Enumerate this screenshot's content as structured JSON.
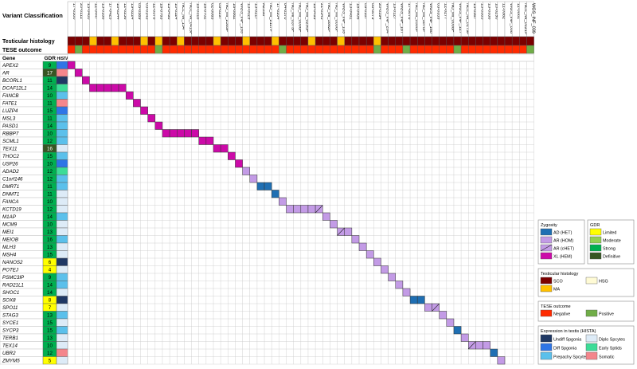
{
  "headers": {
    "variant_classification": "Variant Classification",
    "testicular_histology": "Testicular histology",
    "tese_outcome": "TESE outcome",
    "gene": "Gene",
    "gdr": "GDR",
    "hista": "HISTA"
  },
  "patients": [
    "17-0300",
    "20-0112",
    "13-0400",
    "12-0447",
    "13-0188",
    "17-0425",
    "18-0344",
    "12-0236",
    "19-0224",
    "05-0389",
    "05-0143",
    "12-0378",
    "18-0763",
    "13-0498",
    "10-0324",
    "NCL_MI_154",
    "NCL_MI_0419P",
    "18-0318",
    "16-0702",
    "02-0065",
    "09-0297",
    "NU_MI_2389P",
    "16-0862",
    "WGS_INF_199",
    "13-0029",
    "13-0217",
    "A2396",
    "NU_MI_2117P",
    "17-0104",
    "04-0370",
    "NU_MI_0379P",
    "NU_MI_0006P",
    "NU_MI_0295P",
    "18-0499",
    "21-0345",
    "NU_MI_1662P",
    "NU_MI_0006P",
    "WGS_INF_139",
    "13-0481",
    "18-0406",
    "09-0187",
    "08-0079",
    "20-0394",
    "WGS_INF_284",
    "13-0127",
    "WGS_INF_187",
    "17-0076",
    "NU_MI_0500P",
    "NU_MI_1870P",
    "WGS_INF_160",
    "03-0359",
    "12-0277",
    "NU_MI_0008P",
    "WGS_INF_127",
    "NCL_MI_0179P",
    "15-0567",
    "13-0385",
    "13-0338",
    "10-0290",
    "11-0382",
    "WGS_INF_008",
    "11-0061",
    "NCL_MI_0121P",
    "WGS_INF_039"
  ],
  "histology_codes": [
    "SCO",
    "SCO",
    "SCO",
    "MA",
    "SCO",
    "SCO",
    "MA",
    "SCO",
    "SCO",
    "SCO",
    "MA",
    "SCO",
    "MA",
    "SCO",
    "SCO",
    "MA",
    "SCO",
    "SCO",
    "SCO",
    "SCO",
    "MA",
    "SCO",
    "SCO",
    "SCO",
    "MA",
    "SCO",
    "SCO",
    "SCO",
    "MA",
    "SCO",
    "SCO",
    "SCO",
    "SCO",
    "MA",
    "SCO",
    "SCO",
    "SCO",
    "MA",
    "SCO",
    "SCO",
    "SCO",
    "SCO",
    "MA",
    "SCO",
    "SCO",
    "SCO",
    "SCO",
    "SCO",
    "SCO",
    "SCO",
    "SCO",
    "SCO",
    "SCO",
    "SCO",
    "SCO",
    "SCO",
    "SCO",
    "SCO",
    "SCO",
    "SCO",
    "SCO",
    "SCO",
    "SCO",
    "SCO"
  ],
  "tese_codes": [
    "Negative",
    "Positive",
    "Negative",
    "Negative",
    "Negative",
    "Negative",
    "Negative",
    "Negative",
    "Negative",
    "Negative",
    "Negative",
    "Negative",
    "Positive",
    "Negative",
    "Negative",
    "Negative",
    "Negative",
    "Negative",
    "Negative",
    "Negative",
    "Negative",
    "Negative",
    "Negative",
    "Negative",
    "Negative",
    "Negative",
    "Negative",
    "Negative",
    "Negative",
    "Positive",
    "Negative",
    "Negative",
    "Negative",
    "Negative",
    "Negative",
    "Negative",
    "Negative",
    "Negative",
    "Negative",
    "Negative",
    "Negative",
    "Negative",
    "Positive",
    "Negative",
    "Negative",
    "Negative",
    "Positive",
    "Negative",
    "Negative",
    "Negative",
    "Negative",
    "Negative",
    "Negative",
    "Positive",
    "Negative",
    "Negative",
    "Negative",
    "Negative",
    "Negative",
    "Negative",
    "Negative",
    "Negative",
    "Negative",
    "Positive"
  ],
  "genes": [
    {
      "name": "APEX2",
      "gdr": 9,
      "gdr_class": "Strong",
      "hista": "Diff Spgonia"
    },
    {
      "name": "AR",
      "gdr": 17,
      "gdr_class": "Definitive",
      "hista": "Somatic"
    },
    {
      "name": "BCORL1",
      "gdr": 11,
      "gdr_class": "Strong",
      "hista": "Undiff Spgonia"
    },
    {
      "name": "DCAF12L1",
      "gdr": 14,
      "gdr_class": "Strong",
      "hista": "Early Sptids"
    },
    {
      "name": "FANCB",
      "gdr": 10,
      "gdr_class": "Strong",
      "hista": "Prepachy Spcytes"
    },
    {
      "name": "FATE1",
      "gdr": 11,
      "gdr_class": "Strong",
      "hista": "Somatic"
    },
    {
      "name": "LUZP4",
      "gdr": 15,
      "gdr_class": "Strong",
      "hista": "Diff Spgonia"
    },
    {
      "name": "MSL3",
      "gdr": 11,
      "gdr_class": "Strong",
      "hista": "Prepachy Spcytes"
    },
    {
      "name": "PASD1",
      "gdr": 14,
      "gdr_class": "Strong",
      "hista": "Prepachy Spcytes"
    },
    {
      "name": "RBBP7",
      "gdr": 10,
      "gdr_class": "Strong",
      "hista": "Prepachy Spcytes"
    },
    {
      "name": "SCML1",
      "gdr": 12,
      "gdr_class": "Strong",
      "hista": "Prepachy Spcytes"
    },
    {
      "name": "TEX11",
      "gdr": 16,
      "gdr_class": "Definitive",
      "hista": "Diplo Spcytes"
    },
    {
      "name": "THOC2",
      "gdr": 15,
      "gdr_class": "Strong",
      "hista": "Prepachy Spcytes"
    },
    {
      "name": "USP26",
      "gdr": 10,
      "gdr_class": "Strong",
      "hista": "Diff Spgonia"
    },
    {
      "name": "ADAD2",
      "gdr": 12,
      "gdr_class": "Strong",
      "hista": "Early Sptids"
    },
    {
      "name": "C1orf146",
      "gdr": 12,
      "gdr_class": "Strong",
      "hista": "Prepachy Spcytes"
    },
    {
      "name": "DMRT1",
      "gdr": 11,
      "gdr_class": "Strong",
      "hista": "Prepachy Spcytes"
    },
    {
      "name": "DNMT1",
      "gdr": 11,
      "gdr_class": "Strong",
      "hista": "Diplo Spcytes"
    },
    {
      "name": "FANCA",
      "gdr": 10,
      "gdr_class": "Strong",
      "hista": "Diplo Spcytes"
    },
    {
      "name": "KCTD19",
      "gdr": 12,
      "gdr_class": "Strong",
      "hista": "Diplo Spcytes"
    },
    {
      "name": "M1AP",
      "gdr": 14,
      "gdr_class": "Strong",
      "hista": "Prepachy Spcytes"
    },
    {
      "name": "MCM9",
      "gdr": 10,
      "gdr_class": "Strong",
      "hista": "Diplo Spcytes"
    },
    {
      "name": "MEI1",
      "gdr": 13,
      "gdr_class": "Strong",
      "hista": "Diplo Spcytes"
    },
    {
      "name": "MEIOB",
      "gdr": 16,
      "gdr_class": "Strong",
      "hista": "Prepachy Spcytes"
    },
    {
      "name": "MLH3",
      "gdr": 13,
      "gdr_class": "Strong",
      "hista": "Diplo Spcytes"
    },
    {
      "name": "MSH4",
      "gdr": 15,
      "gdr_class": "Strong",
      "hista": "Diplo Spcytes"
    },
    {
      "name": "NANOS2",
      "gdr": 6,
      "gdr_class": "Limited",
      "hista": "Undiff Spgonia"
    },
    {
      "name": "POTEJ",
      "gdr": 4,
      "gdr_class": "Limited",
      "hista": "Diplo Spcytes"
    },
    {
      "name": "PSMC3IP",
      "gdr": 9,
      "gdr_class": "Strong",
      "hista": "Prepachy Spcytes"
    },
    {
      "name": "RAD21L1",
      "gdr": 14,
      "gdr_class": "Strong",
      "hista": "Prepachy Spcytes"
    },
    {
      "name": "SHOC1",
      "gdr": 14,
      "gdr_class": "Strong",
      "hista": "Diplo Spcytes"
    },
    {
      "name": "SOX8",
      "gdr": 8,
      "gdr_class": "Limited",
      "hista": "Undiff Spgonia"
    },
    {
      "name": "SPO11",
      "gdr": 7,
      "gdr_class": "Limited",
      "hista": "Diplo Spcytes"
    },
    {
      "name": "STAG3",
      "gdr": 13,
      "gdr_class": "Strong",
      "hista": "Prepachy Spcytes"
    },
    {
      "name": "SYCE1",
      "gdr": 15,
      "gdr_class": "Strong",
      "hista": "Diplo Spcytes"
    },
    {
      "name": "SYCP3",
      "gdr": 15,
      "gdr_class": "Strong",
      "hista": "Prepachy Spcytes"
    },
    {
      "name": "TERB1",
      "gdr": 13,
      "gdr_class": "Strong",
      "hista": "Diplo Spcytes"
    },
    {
      "name": "TEX14",
      "gdr": 10,
      "gdr_class": "Strong",
      "hista": "Diplo Spcytes"
    },
    {
      "name": "UBR2",
      "gdr": 12,
      "gdr_class": "Strong",
      "hista": "Somatic"
    },
    {
      "name": "ZMYM5",
      "gdr": 5,
      "gdr_class": "Limited",
      "hista": "Diplo Spcytes"
    }
  ],
  "variants": [
    {
      "gene": 0,
      "patient": 0,
      "type": "XL (HEM)"
    },
    {
      "gene": 1,
      "patient": 1,
      "type": "XL (HEM)"
    },
    {
      "gene": 2,
      "patient": 2,
      "type": "XL (HEM)"
    },
    {
      "gene": 3,
      "patient": 3,
      "type": "XL (HEM)"
    },
    {
      "gene": 3,
      "patient": 4,
      "type": "XL (HEM)"
    },
    {
      "gene": 3,
      "patient": 5,
      "type": "XL (HEM)"
    },
    {
      "gene": 3,
      "patient": 6,
      "type": "XL (HEM)"
    },
    {
      "gene": 3,
      "patient": 7,
      "type": "XL (HEM)"
    },
    {
      "gene": 4,
      "patient": 8,
      "type": "XL (HEM)"
    },
    {
      "gene": 5,
      "patient": 9,
      "type": "XL (HEM)"
    },
    {
      "gene": 6,
      "patient": 10,
      "type": "XL (HEM)"
    },
    {
      "gene": 7,
      "patient": 11,
      "type": "XL (HEM)"
    },
    {
      "gene": 8,
      "patient": 12,
      "type": "XL (HEM)"
    },
    {
      "gene": 9,
      "patient": 13,
      "type": "XL (HEM)"
    },
    {
      "gene": 9,
      "patient": 14,
      "type": "XL (HEM)"
    },
    {
      "gene": 9,
      "patient": 15,
      "type": "XL (HEM)"
    },
    {
      "gene": 9,
      "patient": 16,
      "type": "XL (HEM)"
    },
    {
      "gene": 9,
      "patient": 17,
      "type": "XL (HEM)"
    },
    {
      "gene": 10,
      "patient": 18,
      "type": "XL (HEM)"
    },
    {
      "gene": 10,
      "patient": 19,
      "type": "XL (HEM)"
    },
    {
      "gene": 11,
      "patient": 20,
      "type": "XL (HEM)"
    },
    {
      "gene": 11,
      "patient": 21,
      "type": "XL (HEM)"
    },
    {
      "gene": 12,
      "patient": 22,
      "type": "XL (HEM)"
    },
    {
      "gene": 13,
      "patient": 23,
      "type": "XL (HEM)"
    },
    {
      "gene": 14,
      "patient": 24,
      "type": "AR (HOM)"
    },
    {
      "gene": 15,
      "patient": 25,
      "type": "AR (HOM)"
    },
    {
      "gene": 16,
      "patient": 26,
      "type": "AD (HET)"
    },
    {
      "gene": 16,
      "patient": 27,
      "type": "AD (HET)"
    },
    {
      "gene": 17,
      "patient": 28,
      "type": "AD (HET)"
    },
    {
      "gene": 18,
      "patient": 29,
      "type": "AR (HOM)"
    },
    {
      "gene": 19,
      "patient": 30,
      "type": "AR (HOM)"
    },
    {
      "gene": 19,
      "patient": 31,
      "type": "AR (HOM)"
    },
    {
      "gene": 19,
      "patient": 32,
      "type": "AR (HOM)"
    },
    {
      "gene": 19,
      "patient": 33,
      "type": "AR (HOM)"
    },
    {
      "gene": 19,
      "patient": 34,
      "type": "AR (cHET)"
    },
    {
      "gene": 20,
      "patient": 35,
      "type": "AR (HOM)"
    },
    {
      "gene": 21,
      "patient": 36,
      "type": "AR (HOM)"
    },
    {
      "gene": 22,
      "patient": 37,
      "type": "AR (cHET)"
    },
    {
      "gene": 22,
      "patient": 38,
      "type": "AR (HOM)"
    },
    {
      "gene": 23,
      "patient": 39,
      "type": "AR (HOM)"
    },
    {
      "gene": 24,
      "patient": 40,
      "type": "AR (HOM)"
    },
    {
      "gene": 25,
      "patient": 41,
      "type": "AR (HOM)"
    },
    {
      "gene": 26,
      "patient": 42,
      "type": "AR (HOM)"
    },
    {
      "gene": 27,
      "patient": 43,
      "type": "AR (HOM)"
    },
    {
      "gene": 28,
      "patient": 44,
      "type": "AR (HOM)"
    },
    {
      "gene": 29,
      "patient": 45,
      "type": "AR (HOM)"
    },
    {
      "gene": 30,
      "patient": 46,
      "type": "AR (HOM)"
    },
    {
      "gene": 31,
      "patient": 47,
      "type": "AD (HET)"
    },
    {
      "gene": 31,
      "patient": 48,
      "type": "AD (HET)"
    },
    {
      "gene": 32,
      "patient": 49,
      "type": "AR (HOM)"
    },
    {
      "gene": 32,
      "patient": 50,
      "type": "AR (cHET)"
    },
    {
      "gene": 33,
      "patient": 51,
      "type": "AR (HOM)"
    },
    {
      "gene": 34,
      "patient": 52,
      "type": "AR (HOM)"
    },
    {
      "gene": 35,
      "patient": 53,
      "type": "AD (HET)"
    },
    {
      "gene": 36,
      "patient": 54,
      "type": "AR (HOM)"
    },
    {
      "gene": 37,
      "patient": 55,
      "type": "AR (cHET)"
    },
    {
      "gene": 37,
      "patient": 56,
      "type": "AR (HOM)"
    },
    {
      "gene": 37,
      "patient": 57,
      "type": "AR (HOM)"
    },
    {
      "gene": 38,
      "patient": 58,
      "type": "AD (HET)"
    },
    {
      "gene": 39,
      "patient": 59,
      "type": "AR (HOM)"
    }
  ],
  "legends": {
    "zygosity": {
      "title": "Zygosity",
      "items": [
        {
          "label": "AD (HET)",
          "color": "#1f6fb3"
        },
        {
          "label": "AR (HOM)",
          "color": "#c39be6"
        },
        {
          "label": "AR (cHET)",
          "color": "#c39be6"
        },
        {
          "label": "XL (HEM)",
          "color": "#cc0aa8"
        }
      ]
    },
    "gdr": {
      "title": "GDR",
      "items": [
        {
          "label": "Limited",
          "color": "#ffff00"
        },
        {
          "label": "Moderate",
          "color": "#92d050"
        },
        {
          "label": "Strong",
          "color": "#00b050"
        },
        {
          "label": "Definitive",
          "color": "#375623"
        }
      ]
    },
    "histology": {
      "title": "Testicular histology",
      "items": [
        {
          "label": "SCO",
          "color": "#7b0000"
        },
        {
          "label": "HSG",
          "color": "#fffbd5"
        },
        {
          "label": "MA",
          "color": "#ffc000"
        }
      ]
    },
    "tese": {
      "title": "TESE outcome",
      "items": [
        {
          "label": "Negative",
          "color": "#ff2a00"
        },
        {
          "label": "Positive",
          "color": "#70ad47"
        }
      ]
    },
    "hista": {
      "title": "Expression in testis (HISTA)",
      "items": [
        {
          "label": "Undiff Spgonia",
          "color": "#1f3864"
        },
        {
          "label": "Diplo Spcytes",
          "color": "#ddebf7"
        },
        {
          "label": "Diff Spgonia",
          "color": "#2e75e6"
        },
        {
          "label": "Early Sptids",
          "color": "#3ddc97"
        },
        {
          "label": "Prepachy Spcytes",
          "color": "#5bc0eb"
        },
        {
          "label": "Somatic",
          "color": "#f4868c"
        }
      ]
    }
  }
}
